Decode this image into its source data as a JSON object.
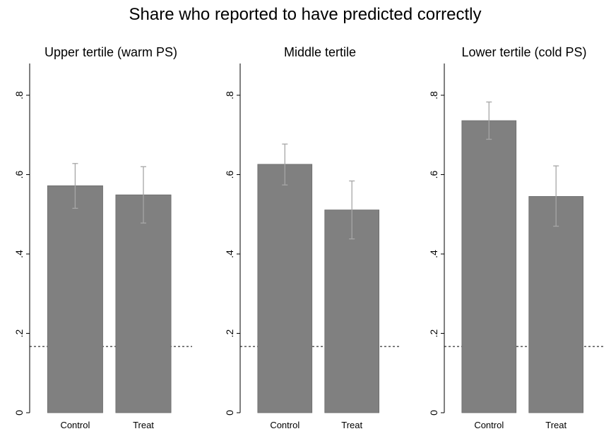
{
  "chart_data": {
    "type": "bar",
    "title": "Share who reported to have predicted correctly",
    "categories": [
      "Control",
      "Treat"
    ],
    "ylim": [
      0,
      0.88
    ],
    "yticks": [
      0,
      0.2,
      0.4,
      0.6,
      0.8
    ],
    "ytick_labels": [
      "0",
      ".2",
      ".4",
      ".6",
      ".8"
    ],
    "reference_line": 0.167,
    "bar_color": "#808080",
    "errorbar_color": "#a6a6a6",
    "grid": false,
    "panels": [
      {
        "subtitle": "Upper tertile (warm PS)",
        "values": [
          0.572,
          0.549
        ],
        "ci_low": [
          0.515,
          0.478
        ],
        "ci_high": [
          0.628,
          0.62
        ]
      },
      {
        "subtitle": "Middle tertile",
        "values": [
          0.626,
          0.511
        ],
        "ci_low": [
          0.574,
          0.438
        ],
        "ci_high": [
          0.677,
          0.584
        ]
      },
      {
        "subtitle": "Lower tertile (cold PS)",
        "values": [
          0.736,
          0.545
        ],
        "ci_low": [
          0.689,
          0.47
        ],
        "ci_high": [
          0.783,
          0.622
        ]
      }
    ]
  }
}
